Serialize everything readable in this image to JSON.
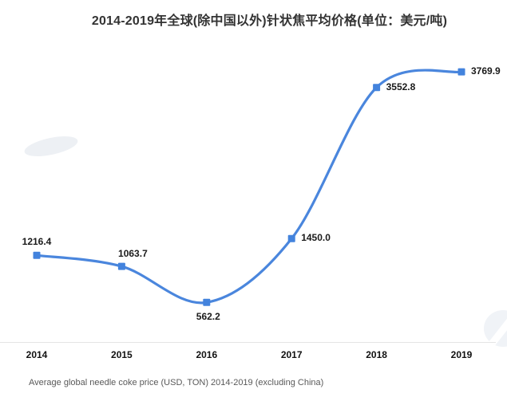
{
  "title": "2014-2019年全球(除中国以外)针状焦平均价格(单位：美元/吨)",
  "footer": "Average global needle coke price (USD, TON) 2014-2019 (excluding China)",
  "colors": {
    "line": "#4a86dd",
    "marker": "#4383dd",
    "axis": "#e4e4e4",
    "title": "#333333",
    "data_label": "#1a1a1a",
    "footer_text": "#595959",
    "watermark": "#eef1f5"
  },
  "chart_data": {
    "type": "line",
    "categories": [
      "2014",
      "2015",
      "2016",
      "2017",
      "2018",
      "2019"
    ],
    "values": [
      1216.4,
      1063.7,
      562.2,
      1450.0,
      3552.8,
      3769.9
    ],
    "point_labels": [
      "1216.4",
      "1063.7",
      "562.2",
      "1450.0",
      "3552.8",
      "3769.9"
    ],
    "label_positions": [
      "above",
      "above-right",
      "below",
      "right",
      "right",
      "right"
    ],
    "title": "2014-2019年全球(除中国以外)针状焦平均价格(单位：美元/吨)",
    "xlabel": "",
    "ylabel": "",
    "ylim": [
      0,
      4215
    ],
    "grid": false,
    "legend": "none",
    "smooth": true
  }
}
